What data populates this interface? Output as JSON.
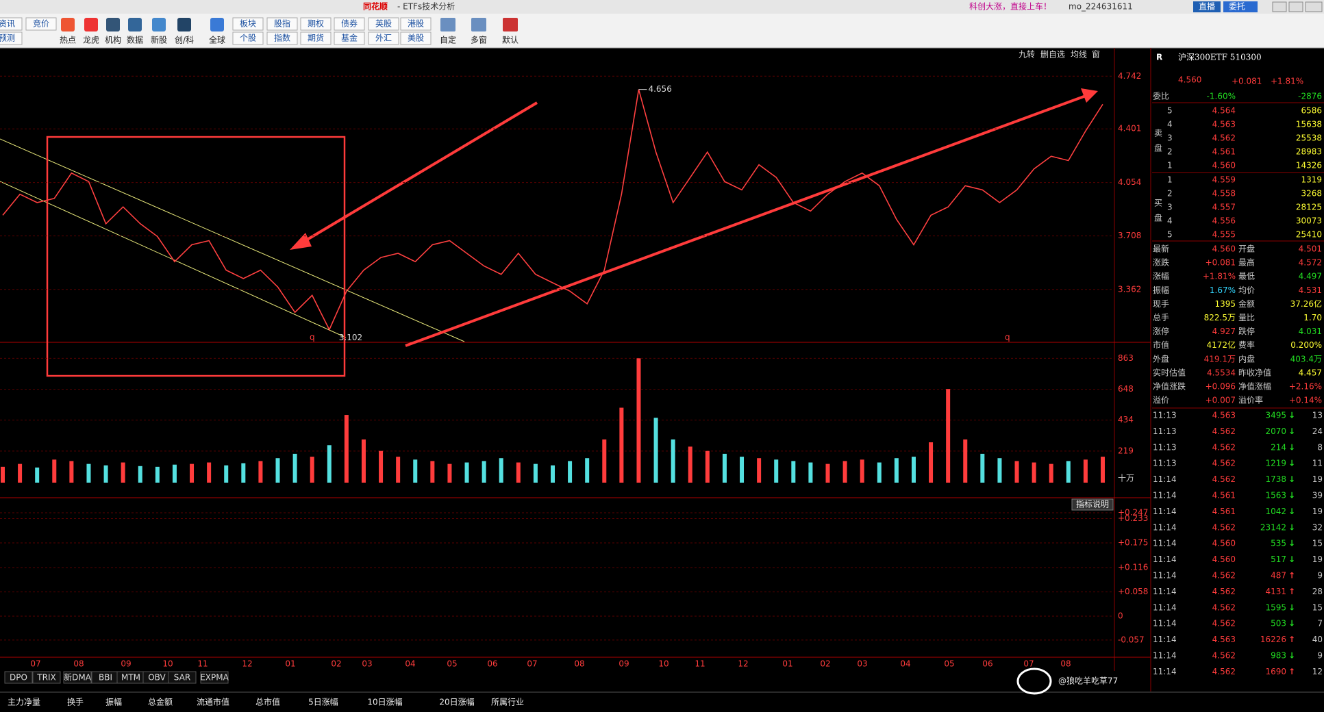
{
  "title_bar": {
    "app": "同花顺",
    "title": "- ETFs技术分析",
    "promo": "科创大涨，直接上车！",
    "user": "mo_224631611",
    "live": "直播",
    "order": "委托"
  },
  "toolbar": {
    "side": [
      "资讯",
      "预测",
      "竞价"
    ],
    "icons": [
      "热点",
      "龙虎",
      "机构",
      "数据",
      "新股",
      "创/科",
      "全球"
    ],
    "pairs": [
      [
        "板块",
        "个股"
      ],
      [
        "股指",
        "指数"
      ],
      [
        "期权",
        "期货"
      ],
      [
        "债券",
        "基金"
      ],
      [
        "英股",
        "外汇"
      ],
      [
        "港股",
        "美股"
      ]
    ],
    "tools": [
      "自定",
      "多窗",
      "默认"
    ]
  },
  "chart_toolbar": [
    "九转",
    "删自选",
    "均线",
    "窗"
  ],
  "chart_data": [
    {
      "type": "line",
      "color": "#ff4040",
      "values": [
        3.842,
        3.978,
        3.924,
        3.951,
        4.115,
        4.06,
        3.787,
        3.896,
        3.787,
        3.705,
        3.542,
        3.651,
        3.678,
        3.487,
        3.433,
        3.487,
        3.378,
        3.214,
        3.324,
        3.102,
        3.351,
        3.487,
        3.569,
        3.596,
        3.542,
        3.651,
        3.678,
        3.596,
        3.514,
        3.46,
        3.596,
        3.46,
        3.405,
        3.351,
        3.269,
        3.487,
        3.978,
        4.656,
        4.251,
        3.924,
        4.087,
        4.251,
        4.06,
        4.006,
        4.169,
        4.087,
        3.924,
        3.869,
        3.978,
        4.06,
        4.115,
        4.033,
        3.815,
        3.651,
        3.842,
        3.896,
        4.033,
        4.006,
        3.924,
        4.006,
        4.142,
        4.224,
        4.196,
        4.387,
        4.56
      ],
      "ylim": [
        3.02,
        4.845
      ],
      "yticks": [
        4.742,
        4.401,
        4.054,
        3.708,
        3.362
      ],
      "annotations": [
        "4.656",
        "3.102",
        "q",
        "q"
      ]
    },
    {
      "type": "bar",
      "values": [
        110,
        130,
        105,
        160,
        150,
        130,
        120,
        140,
        115,
        110,
        125,
        130,
        140,
        120,
        135,
        150,
        170,
        200,
        180,
        260,
        470,
        300,
        220,
        180,
        160,
        150,
        130,
        140,
        150,
        170,
        140,
        130,
        120,
        150,
        170,
        300,
        520,
        863,
        450,
        300,
        250,
        220,
        200,
        180,
        170,
        160,
        150,
        140,
        130,
        150,
        160,
        140,
        170,
        180,
        280,
        650,
        300,
        200,
        170,
        150,
        140,
        130,
        150,
        160,
        180
      ],
      "ylim": [
        0,
        950
      ],
      "yticks": [
        863,
        648,
        434,
        219
      ],
      "unit": "十万"
    },
    {
      "type": "macd",
      "ylim": [
        -0.098,
        0.278
      ],
      "yticks": [
        {
          "value": 0.247,
          "label": "+0.247"
        },
        {
          "value": 0.233,
          "label": "+0.233"
        },
        {
          "value": 0.175,
          "label": "+0.175"
        },
        {
          "value": 0.116,
          "label": "+0.116"
        },
        {
          "value": 0.058,
          "label": "+0.058"
        },
        0,
        -0.057
      ],
      "help": "指标说明"
    }
  ],
  "date_axis": [
    "07",
    "08",
    "09",
    "10",
    "11",
    "12",
    "01",
    "02",
    "03",
    "04",
    "05",
    "06",
    "07",
    "08",
    "09",
    "10",
    "11",
    "12",
    "01",
    "02",
    "03",
    "04",
    "05",
    "06",
    "07",
    "08"
  ],
  "indicator_tabs": [
    "DPO",
    "TRIX",
    "新DMA",
    "BBI",
    "MTM",
    "OBV",
    "SAR",
    "EXPMA"
  ],
  "quote": {
    "market": "R",
    "name": "沪深300ETF 510300",
    "price": "4.560",
    "change": "+0.081",
    "pct": "+1.81%"
  },
  "order_book": {
    "ratio_label": "委比",
    "ratio": "-1.60%",
    "diff": "-2876",
    "sell_label": "卖盘",
    "buy_label": "买盘",
    "asks": [
      [
        "5",
        "4.564",
        "6586"
      ],
      [
        "4",
        "4.563",
        "15638"
      ],
      [
        "3",
        "4.562",
        "25538"
      ],
      [
        "2",
        "4.561",
        "28983"
      ],
      [
        "1",
        "4.560",
        "14326"
      ]
    ],
    "bids": [
      [
        "1",
        "4.559",
        "1319"
      ],
      [
        "2",
        "4.558",
        "3268"
      ],
      [
        "3",
        "4.557",
        "28125"
      ],
      [
        "4",
        "4.556",
        "30073"
      ],
      [
        "5",
        "4.555",
        "25410"
      ]
    ]
  },
  "stats": [
    [
      "最新",
      "4.560",
      "开盘",
      "4.501"
    ],
    [
      "涨跌",
      "+0.081",
      "最高",
      "4.572"
    ],
    [
      "涨幅",
      "+1.81%",
      "最低",
      "4.497"
    ],
    [
      "振幅",
      "1.67%",
      "均价",
      "4.531"
    ],
    [
      "现手",
      "1395",
      "金额",
      "37.26亿"
    ],
    [
      "总手",
      "822.5万",
      "量比",
      "1.70"
    ],
    [
      "涨停",
      "4.927",
      "跌停",
      "4.031"
    ],
    [
      "市值",
      "4172亿",
      "费率",
      "0.200%"
    ],
    [
      "外盘",
      "419.1万",
      "内盘",
      "403.4万"
    ],
    [
      "实时估值",
      "4.5534",
      "昨收净值",
      "4.457"
    ],
    [
      "净值涨跌",
      "+0.096",
      "净值涨幅",
      "+2.16%"
    ],
    [
      "溢价",
      "+0.007",
      "溢价率",
      "+0.14%"
    ]
  ],
  "trades": [
    [
      "11:13",
      "4.563",
      "3495",
      "↓",
      "13"
    ],
    [
      "11:13",
      "4.562",
      "2070",
      "↓",
      "24"
    ],
    [
      "11:13",
      "4.562",
      "214",
      "↓",
      "8"
    ],
    [
      "11:13",
      "4.562",
      "1219",
      "↓",
      "11"
    ],
    [
      "11:14",
      "4.562",
      "1738",
      "↓",
      "19"
    ],
    [
      "11:14",
      "4.561",
      "1563",
      "↓",
      "39"
    ],
    [
      "11:14",
      "4.561",
      "1042",
      "↓",
      "19"
    ],
    [
      "11:14",
      "4.562",
      "23142",
      "↓",
      "32"
    ],
    [
      "11:14",
      "4.560",
      "535",
      "↓",
      "15"
    ],
    [
      "11:14",
      "4.560",
      "517",
      "↓",
      "19"
    ],
    [
      "11:14",
      "4.562",
      "487",
      "↑",
      "9"
    ],
    [
      "11:14",
      "4.562",
      "4131",
      "↑",
      "28"
    ],
    [
      "11:14",
      "4.562",
      "1595",
      "↓",
      "15"
    ],
    [
      "11:14",
      "4.562",
      "503",
      "↓",
      "7"
    ],
    [
      "11:14",
      "4.563",
      "16226",
      "↑",
      "40"
    ],
    [
      "11:14",
      "4.562",
      "983",
      "↓",
      "9"
    ],
    [
      "11:14",
      "4.562",
      "1690",
      "↑",
      "12"
    ]
  ],
  "columns": [
    "主力净量",
    "换手",
    "振幅",
    "总金额",
    "流通市值",
    "总市值",
    "5日涨幅",
    "10日涨幅",
    "20日涨幅",
    "所属行业"
  ],
  "watermark": "@狼吃羊吃草77"
}
